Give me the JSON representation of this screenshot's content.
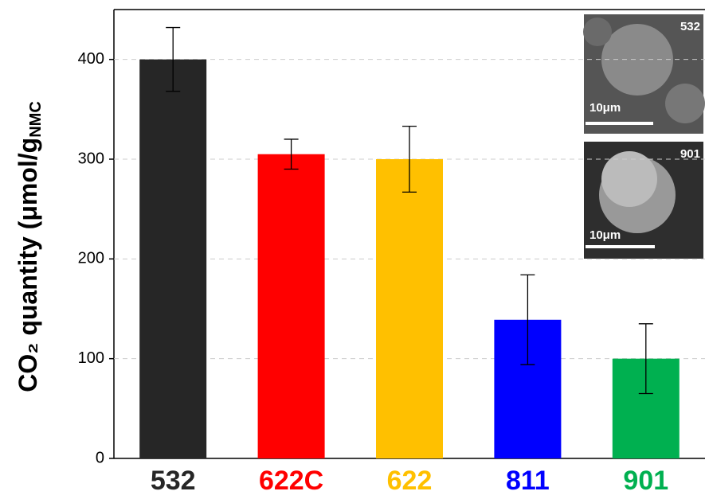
{
  "chart_data": {
    "type": "bar",
    "y_label": "CO₂ quantity (μmol/g",
    "y_label_sub": "NMC",
    "categories": [
      "532",
      "622C",
      "622",
      "811",
      "901"
    ],
    "values": [
      400,
      305,
      300,
      139,
      100
    ],
    "errors": [
      32,
      15,
      33,
      45,
      35
    ],
    "colors": [
      "#262626",
      "#ff0000",
      "#ffc000",
      "#0000ff",
      "#00b050"
    ],
    "ylim": [
      0,
      450
    ],
    "yticks": [
      0,
      100,
      200,
      300,
      400
    ],
    "grid": true,
    "insets": [
      {
        "label": "532",
        "scale": "10μm"
      },
      {
        "label": "901",
        "scale": "10μm"
      }
    ]
  }
}
